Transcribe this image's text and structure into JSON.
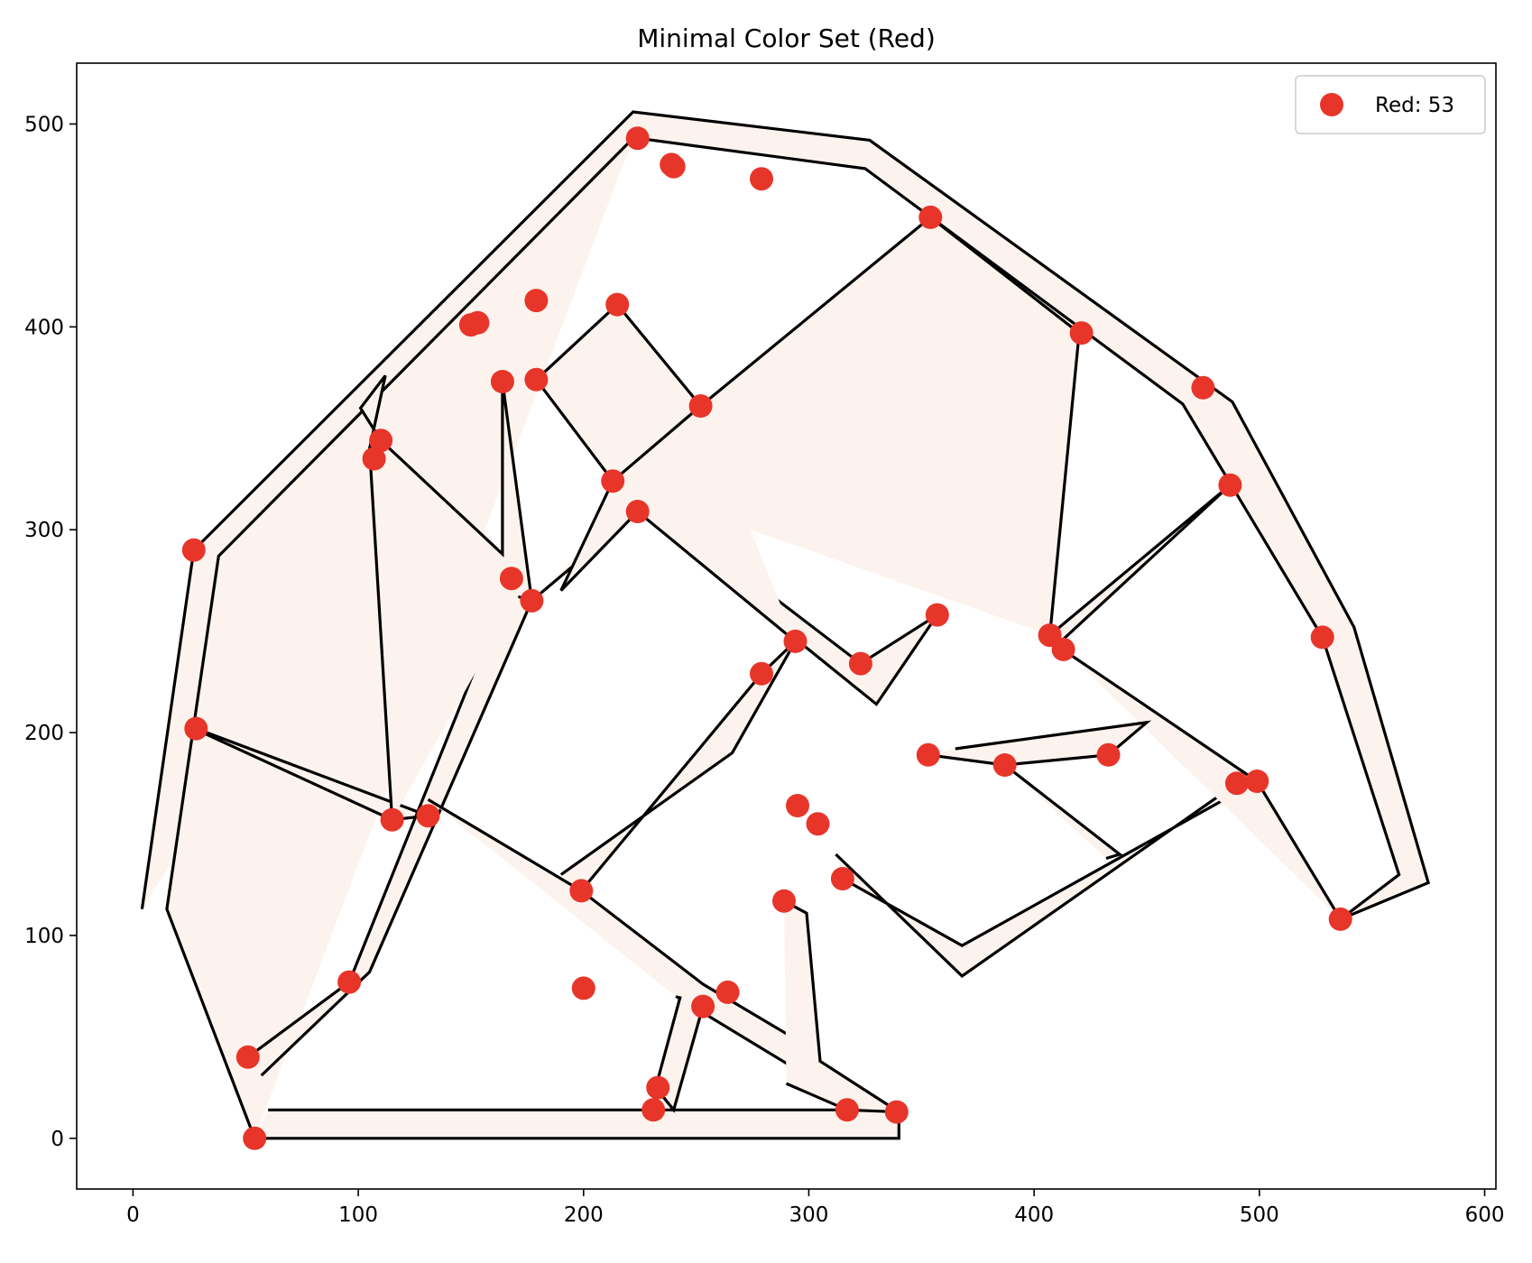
{
  "chart_data": {
    "type": "scatter",
    "title": "Minimal Color Set (Red)",
    "xlabel": "",
    "ylabel": "",
    "xlim": [
      -25,
      605
    ],
    "ylim": [
      -25,
      530
    ],
    "x_ticks": [
      0,
      100,
      200,
      300,
      400,
      500,
      600
    ],
    "y_ticks": [
      0,
      100,
      200,
      300,
      400,
      500
    ],
    "grid": false,
    "legend": {
      "position": "top-right",
      "entries": [
        {
          "label": "Red: 53",
          "color": "#e8352a"
        }
      ]
    },
    "colors": {
      "marker": "#e8352a",
      "road_fill": "#fdf3ee",
      "outline": "#000000"
    },
    "series": [
      {
        "name": "Red: 53",
        "points": [
          [
            54,
            0
          ],
          [
            51,
            40
          ],
          [
            96,
            77
          ],
          [
            28,
            202
          ],
          [
            27,
            290
          ],
          [
            107,
            335
          ],
          [
            110,
            344
          ],
          [
            150,
            401
          ],
          [
            164,
            373
          ],
          [
            179,
            374
          ],
          [
            179,
            413
          ],
          [
            168,
            276
          ],
          [
            177,
            265
          ],
          [
            115,
            157
          ],
          [
            131,
            159
          ],
          [
            199,
            122
          ],
          [
            200,
            74
          ],
          [
            231,
            14
          ],
          [
            233,
            25
          ],
          [
            253,
            65
          ],
          [
            264,
            72
          ],
          [
            289,
            117
          ],
          [
            315,
            128
          ],
          [
            317,
            14
          ],
          [
            339,
            13
          ],
          [
            224,
            493
          ],
          [
            239,
            480
          ],
          [
            279,
            473
          ],
          [
            354,
            454
          ],
          [
            215,
            411
          ],
          [
            252,
            361
          ],
          [
            213,
            324
          ],
          [
            224,
            309
          ],
          [
            294,
            245
          ],
          [
            279,
            229
          ],
          [
            295,
            164
          ],
          [
            304,
            155
          ],
          [
            323,
            234
          ],
          [
            357,
            258
          ],
          [
            353,
            189
          ],
          [
            387,
            184
          ],
          [
            433,
            189
          ],
          [
            421,
            397
          ],
          [
            475,
            370
          ],
          [
            487,
            322
          ],
          [
            407,
            248
          ],
          [
            413,
            241
          ],
          [
            490,
            175
          ],
          [
            499,
            176
          ],
          [
            528,
            247
          ],
          [
            536,
            108
          ],
          [
            153,
            402
          ],
          [
            240,
            479
          ]
        ]
      }
    ],
    "road_polygons": [
      [
        [
          54,
          0
        ],
        [
          340,
          0
        ],
        [
          340,
          14
        ],
        [
          60,
          14
        ]
      ],
      [
        [
          4,
          113
        ],
        [
          27,
          290
        ],
        [
          222,
          506
        ],
        [
          327,
          492
        ],
        [
          488,
          363
        ],
        [
          542,
          252
        ],
        [
          575,
          126
        ],
        [
          536,
          108
        ],
        [
          562,
          130
        ],
        [
          528,
          247
        ],
        [
          466,
          362
        ],
        [
          325,
          478
        ],
        [
          224,
          493
        ]
      ],
      [
        [
          54,
          0
        ],
        [
          15,
          113
        ],
        [
          38,
          287
        ],
        [
          222,
          493
        ]
      ],
      [
        [
          27,
          202
        ],
        [
          115,
          157
        ],
        [
          131,
          159
        ],
        [
          28,
          202
        ]
      ],
      [
        [
          51,
          40
        ],
        [
          96,
          77
        ],
        [
          168,
          276
        ],
        [
          177,
          265
        ],
        [
          105,
          82
        ],
        [
          57,
          31
        ]
      ],
      [
        [
          115,
          157
        ],
        [
          105,
          340
        ],
        [
          112,
          376
        ],
        [
          101,
          360
        ],
        [
          110,
          344
        ],
        [
          164,
          288
        ],
        [
          164,
          373
        ],
        [
          177,
          265
        ],
        [
          171,
          267
        ]
      ],
      [
        [
          131,
          167
        ],
        [
          199,
          122
        ],
        [
          253,
          76
        ],
        [
          300,
          45
        ],
        [
          290,
          37
        ],
        [
          241,
          70
        ]
      ],
      [
        [
          199,
          122
        ],
        [
          279,
          229
        ],
        [
          294,
          245
        ],
        [
          266,
          190
        ],
        [
          190,
          130
        ]
      ],
      [
        [
          253,
          65
        ],
        [
          240,
          14
        ],
        [
          232,
          25
        ],
        [
          243,
          70
        ]
      ],
      [
        [
          289,
          117
        ],
        [
          299,
          111
        ],
        [
          305,
          38
        ],
        [
          340,
          13
        ],
        [
          317,
          14
        ],
        [
          290,
          27
        ]
      ],
      [
        [
          315,
          128
        ],
        [
          368,
          95
        ],
        [
          499,
          176
        ],
        [
          490,
          175
        ],
        [
          368,
          80
        ],
        [
          312,
          140
        ]
      ],
      [
        [
          177,
          265
        ],
        [
          224,
          309
        ],
        [
          330,
          214
        ],
        [
          357,
          258
        ],
        [
          323,
          234
        ],
        [
          224,
          318
        ]
      ],
      [
        [
          213,
          324
        ],
        [
          179,
          374
        ],
        [
          215,
          411
        ],
        [
          252,
          361
        ],
        [
          354,
          454
        ],
        [
          420,
          397
        ],
        [
          407,
          248
        ]
      ],
      [
        [
          252,
          361
        ],
        [
          213,
          324
        ],
        [
          190,
          270
        ],
        [
          224,
          309
        ],
        [
          294,
          245
        ]
      ],
      [
        [
          407,
          248
        ],
        [
          487,
          322
        ],
        [
          410,
          243
        ],
        [
          499,
          176
        ],
        [
          536,
          108
        ]
      ],
      [
        [
          353,
          189
        ],
        [
          387,
          184
        ],
        [
          433,
          189
        ],
        [
          450,
          205
        ],
        [
          365,
          192
        ]
      ],
      [
        [
          387,
          184
        ],
        [
          438,
          140
        ],
        [
          432,
          138
        ]
      ]
    ]
  }
}
